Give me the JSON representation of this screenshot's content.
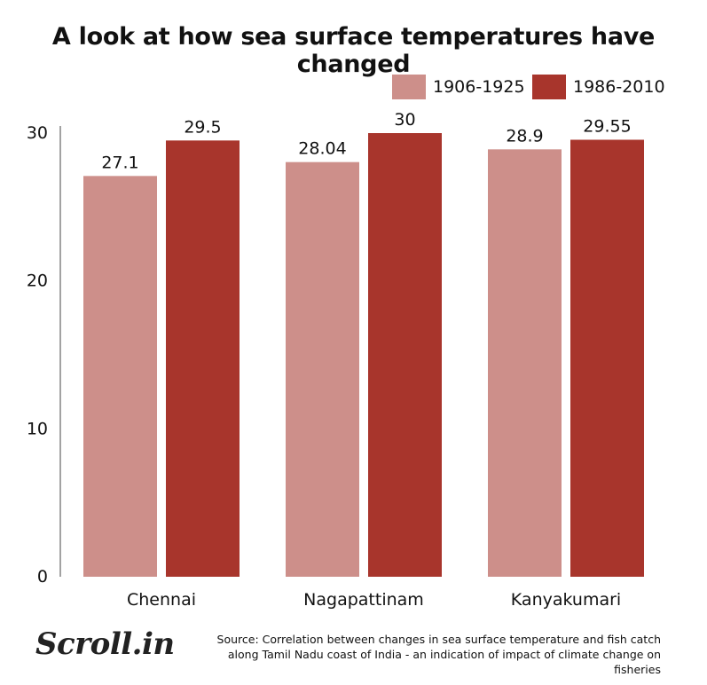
{
  "title": "A look at how sea surface temperatures have changed",
  "legend": [
    {
      "label": "1906-1925",
      "color": "#cd8f8a"
    },
    {
      "label": "1986-2010",
      "color": "#a8352c"
    }
  ],
  "chart_data": {
    "type": "bar",
    "title": "A look at how sea surface temperatures have changed",
    "categories": [
      "Chennai",
      "Nagapattinam",
      "Kanyakumari"
    ],
    "series": [
      {
        "name": "1906-1925",
        "values": [
          27.1,
          28.04,
          28.9
        ],
        "labels": [
          "27.1",
          "28.04",
          "28.9"
        ],
        "color": "#cd8f8a"
      },
      {
        "name": "1986-2010",
        "values": [
          29.5,
          30,
          29.55
        ],
        "labels": [
          "29.5",
          "30",
          "29.55"
        ],
        "color": "#a8352c"
      }
    ],
    "yticks": [
      "0",
      "10",
      "20",
      "30"
    ],
    "ylim": [
      0,
      30
    ],
    "grid": false,
    "legend_position": "top-right"
  },
  "source": {
    "line1": "Source: Correlation between changes in sea surface temperature and fish catch",
    "line2": "along Tamil Nadu coast of India - an indication of impact of climate change on fisheries"
  },
  "logo": "Scroll.in"
}
